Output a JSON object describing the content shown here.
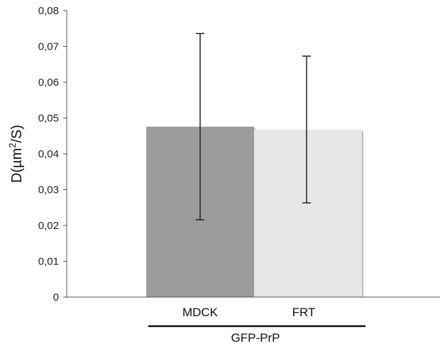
{
  "chart_data": {
    "type": "bar",
    "categories": [
      "MDCK",
      "FRT"
    ],
    "values": [
      0.0476,
      0.0468
    ],
    "error_low": [
      0.0216,
      0.0263
    ],
    "error_high": [
      0.0736,
      0.0673
    ],
    "colors": [
      "#9b9b9b",
      "#e6e6e6"
    ],
    "ylabel": {
      "base": "D(",
      "unit": "µm",
      "sup": "2",
      "tail": "/S)"
    },
    "ylim": [
      0,
      0.08
    ],
    "yticks": [
      "0",
      "0,01",
      "0,02",
      "0,03",
      "0,04",
      "0,05",
      "0,06",
      "0,07",
      "0,08"
    ],
    "group_label": "GFP-PrP",
    "grid": false
  }
}
